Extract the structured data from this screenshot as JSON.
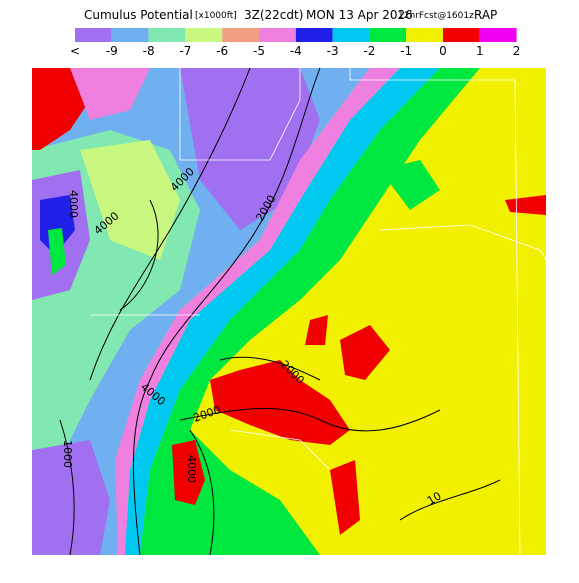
{
  "header": {
    "title_parts": [
      "Cumulus Potential",
      "[x1000ft]",
      "3Z(22cdt)",
      "MON 13 Apr 2026",
      "12hrFcst@1601z",
      "RAP"
    ]
  },
  "colorbar": {
    "labels": [
      "<",
      "-9",
      "-8",
      "-7",
      "-6",
      "-5",
      "-4",
      "-3",
      "-2",
      "-1",
      "0",
      "1",
      "2"
    ],
    "colors": [
      "#a070f0",
      "#70b0f0",
      "#80e8b0",
      "#c8f880",
      "#f0a080",
      "#f080e0",
      "#2020e8",
      "#00c8f0",
      "#00e840",
      "#f0f000",
      "#f00000",
      "#f000f0"
    ]
  },
  "contour_labels": [
    "4000",
    "4000",
    "4000",
    "2000",
    "2000",
    "2000",
    "4000",
    "4000",
    "1000",
    "10"
  ]
}
